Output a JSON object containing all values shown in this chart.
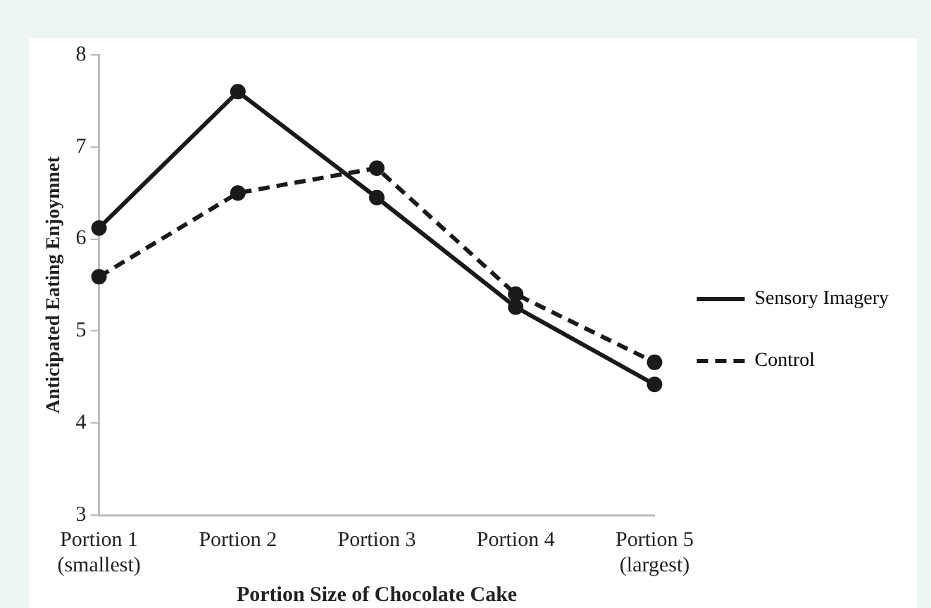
{
  "chart_data": {
    "type": "line",
    "xlabel": "Portion Size of Chocolate Cake",
    "ylabel": "Anticipated Eating Enjoymnet",
    "categories": [
      "Portion 1\n(smallest)",
      "Portion 2",
      "Portion 3",
      "Portion 4",
      "Portion 5\n(largest)"
    ],
    "series": [
      {
        "name": "Sensory Imagery",
        "color": "#1a1a1a",
        "values": [
          6.12,
          7.6,
          6.45,
          5.26,
          4.42
        ],
        "line_style": "solid"
      },
      {
        "name": "Control",
        "color": "#1a1a1a",
        "values": [
          5.59,
          6.5,
          6.77,
          5.4,
          4.66
        ],
        "line_style": "dashed"
      }
    ],
    "ylim": [
      3,
      8
    ],
    "yticks": [
      3,
      4,
      5,
      6,
      7,
      8
    ],
    "grid": false,
    "legend": "right",
    "marker": "circle"
  }
}
